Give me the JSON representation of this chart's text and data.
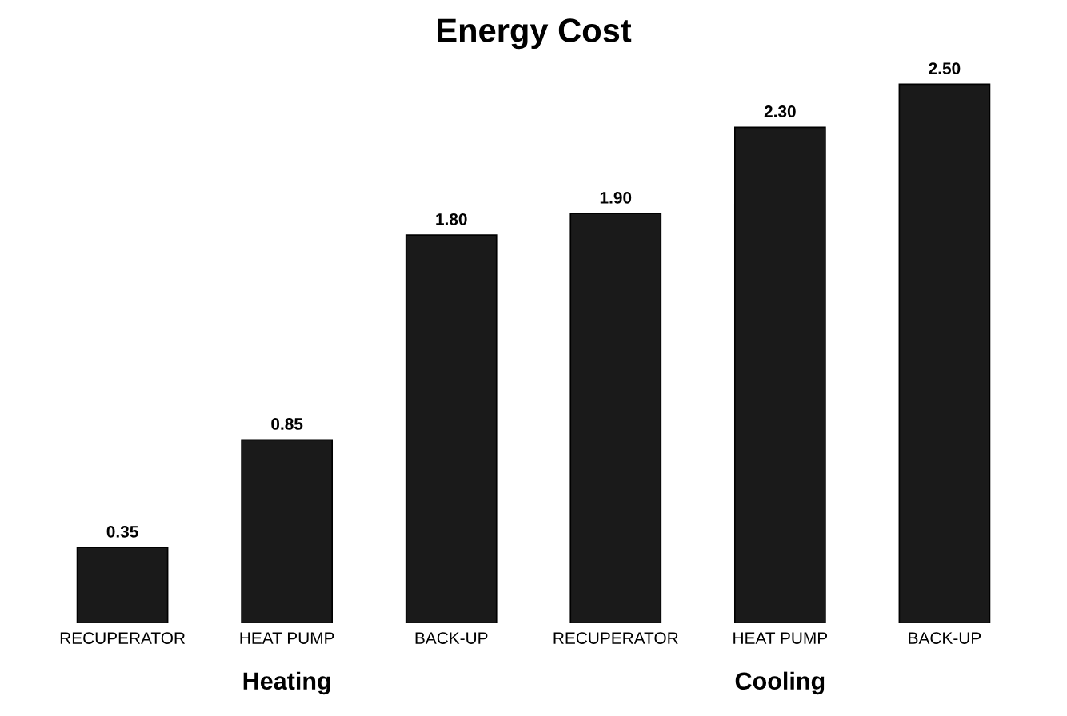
{
  "chart_data": {
    "type": "bar",
    "title": "Energy Cost",
    "categories": [
      "RECUPERATOR",
      "HEAT PUMP",
      "BACK-UP",
      "RECUPERATOR",
      "HEAT PUMP",
      "BACK-UP"
    ],
    "values": [
      0.35,
      0.85,
      1.8,
      1.9,
      2.3,
      2.5
    ],
    "value_labels": [
      "0.35",
      "0.85",
      "1.80",
      "1.90",
      "2.30",
      "2.50"
    ],
    "color": "#1a1a1a",
    "annotations": [
      "Heating",
      "Cooling"
    ],
    "grid": false,
    "legend": false
  }
}
